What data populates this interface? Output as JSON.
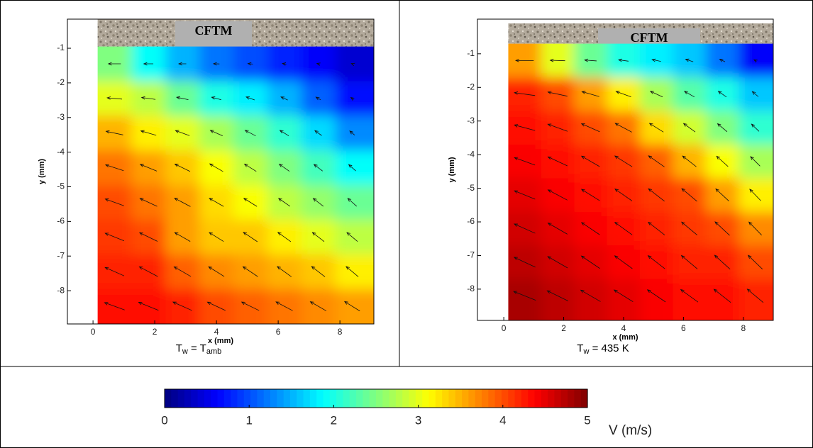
{
  "chart_data": [
    {
      "type": "quiver-heatmap",
      "label": "CFTM",
      "xlabel": "x (mm)",
      "ylabel": "y (mm)",
      "xlim": [
        -0.83,
        9.1
      ],
      "ylim": [
        -8.96,
        -0.16
      ],
      "xticks": [
        0,
        2,
        4,
        6,
        8
      ],
      "yticks": [
        -1,
        -2,
        -3,
        -4,
        -5,
        -6,
        -7,
        -8
      ],
      "x": [
        0.7,
        1.8,
        2.9,
        4.0,
        5.1,
        6.2,
        7.3,
        8.4
      ],
      "y": [
        -1.45,
        -2.45,
        -3.45,
        -4.45,
        -5.45,
        -6.45,
        -7.45,
        -8.45
      ],
      "speed": [
        [
          2.5,
          1.9,
          1.5,
          1.2,
          1.0,
          0.8,
          0.6,
          0.4
        ],
        [
          3.0,
          2.8,
          2.4,
          2.0,
          1.8,
          1.5,
          1.1,
          0.7
        ],
        [
          3.5,
          3.2,
          3.0,
          2.7,
          2.4,
          2.1,
          1.7,
          1.3
        ],
        [
          3.8,
          3.6,
          3.4,
          3.1,
          2.8,
          2.5,
          2.2,
          1.9
        ],
        [
          4.0,
          3.8,
          3.6,
          3.3,
          3.1,
          2.8,
          2.6,
          2.4
        ],
        [
          4.1,
          4.0,
          3.6,
          3.4,
          3.4,
          3.2,
          3.0,
          2.8
        ],
        [
          4.2,
          4.2,
          3.9,
          3.7,
          3.6,
          3.5,
          3.4,
          3.2
        ],
        [
          4.3,
          4.3,
          4.2,
          4.0,
          3.9,
          3.8,
          3.7,
          3.6
        ]
      ],
      "angle": [
        [
          180,
          180,
          180,
          178,
          175,
          170,
          165,
          160
        ],
        [
          175,
          172,
          168,
          165,
          160,
          155,
          150,
          145
        ],
        [
          168,
          164,
          160,
          156,
          152,
          148,
          144,
          140
        ],
        [
          162,
          158,
          154,
          150,
          148,
          145,
          142,
          138
        ],
        [
          160,
          155,
          152,
          150,
          148,
          145,
          142,
          138
        ],
        [
          158,
          154,
          150,
          148,
          146,
          144,
          142,
          140
        ],
        [
          156,
          152,
          150,
          148,
          146,
          144,
          142,
          140
        ],
        [
          160,
          158,
          156,
          155,
          154,
          152,
          150,
          148
        ]
      ],
      "caption": [
        "T",
        "w",
        " = T",
        "amb"
      ]
    },
    {
      "type": "quiver-heatmap",
      "label": "CFTM",
      "xlabel": "x (mm)",
      "ylabel": "y (mm)",
      "xlim": [
        -0.88,
        9.0
      ],
      "ylim": [
        -8.93,
        0.03
      ],
      "xticks": [
        0,
        2,
        4,
        6,
        8
      ],
      "yticks": [
        -1,
        -2,
        -3,
        -4,
        -5,
        -6,
        -7,
        -8
      ],
      "x": [
        0.7,
        1.8,
        2.9,
        4.0,
        5.1,
        6.2,
        7.3,
        8.4
      ],
      "y": [
        -1.2,
        -2.2,
        -3.2,
        -4.2,
        -5.2,
        -6.2,
        -7.2,
        -8.2
      ],
      "speed": [
        [
          3.6,
          3.0,
          2.4,
          2.0,
          1.8,
          1.6,
          1.2,
          0.6
        ],
        [
          4.2,
          4.0,
          3.6,
          3.2,
          2.7,
          2.3,
          2.0,
          1.6
        ],
        [
          4.3,
          4.2,
          4.0,
          3.8,
          3.3,
          2.9,
          2.5,
          2.1
        ],
        [
          4.4,
          4.3,
          4.2,
          4.1,
          3.9,
          3.5,
          3.1,
          2.7
        ],
        [
          4.5,
          4.4,
          4.3,
          4.2,
          4.1,
          4.0,
          3.6,
          3.2
        ],
        [
          4.6,
          4.5,
          4.4,
          4.3,
          4.2,
          4.1,
          4.0,
          3.7
        ],
        [
          4.7,
          4.6,
          4.5,
          4.4,
          4.3,
          4.2,
          4.2,
          4.0
        ],
        [
          4.8,
          4.7,
          4.6,
          4.5,
          4.4,
          4.3,
          4.3,
          4.2
        ]
      ],
      "angle": [
        [
          180,
          178,
          176,
          172,
          168,
          162,
          155,
          150
        ],
        [
          172,
          168,
          164,
          160,
          155,
          150,
          145,
          140
        ],
        [
          165,
          160,
          156,
          152,
          148,
          144,
          140,
          136
        ],
        [
          160,
          155,
          150,
          148,
          145,
          142,
          138,
          135
        ],
        [
          158,
          152,
          148,
          145,
          142,
          140,
          137,
          134
        ],
        [
          156,
          150,
          146,
          144,
          142,
          140,
          137,
          134
        ],
        [
          155,
          150,
          146,
          144,
          142,
          140,
          138,
          136
        ],
        [
          158,
          154,
          150,
          148,
          146,
          144,
          142,
          140
        ]
      ],
      "caption": [
        "T",
        "w",
        " = 435 K"
      ]
    }
  ],
  "colorbar": {
    "colormap": "jet",
    "lim": [
      0,
      5
    ],
    "ticks": [
      0,
      1,
      2,
      3,
      4,
      5
    ],
    "label": "V (m/s)"
  }
}
